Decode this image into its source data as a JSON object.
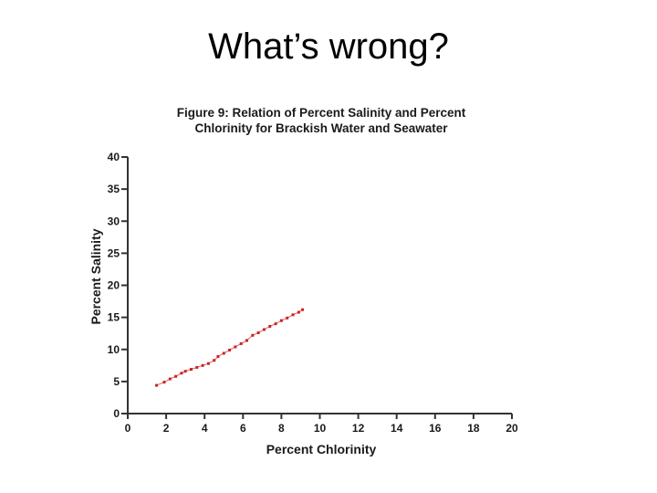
{
  "slide": {
    "title": "What’s wrong?"
  },
  "chart_data": {
    "type": "scatter",
    "title": "Figure 9: Relation of Percent Salinity and Percent",
    "subtitle": "Chlorinity for Brackish Water and Seawater",
    "xlabel": "Percent Chlorinity",
    "ylabel": "Percent Salinity",
    "xlim": [
      0,
      20
    ],
    "ylim": [
      0,
      40
    ],
    "xticks": [
      0,
      2,
      4,
      6,
      8,
      10,
      12,
      14,
      16,
      18,
      20
    ],
    "yticks": [
      0,
      5,
      10,
      15,
      20,
      25,
      30,
      35,
      40
    ],
    "grid": false,
    "color": "#cc2222",
    "series": [
      {
        "points": [
          [
            1.5,
            4.4
          ],
          [
            1.9,
            4.9
          ],
          [
            2.2,
            5.4
          ],
          [
            2.5,
            5.8
          ],
          [
            2.8,
            6.3
          ],
          [
            3.0,
            6.6
          ],
          [
            3.3,
            6.9
          ],
          [
            3.6,
            7.2
          ],
          [
            3.9,
            7.5
          ],
          [
            4.2,
            7.8
          ],
          [
            4.5,
            8.3
          ],
          [
            4.7,
            8.9
          ],
          [
            5.0,
            9.4
          ],
          [
            5.3,
            9.9
          ],
          [
            5.6,
            10.4
          ],
          [
            5.9,
            10.9
          ],
          [
            6.2,
            11.4
          ],
          [
            6.5,
            12.2
          ],
          [
            6.8,
            12.6
          ],
          [
            7.1,
            13.1
          ],
          [
            7.4,
            13.6
          ],
          [
            7.7,
            14.0
          ],
          [
            8.0,
            14.5
          ],
          [
            8.3,
            14.9
          ],
          [
            8.6,
            15.4
          ],
          [
            8.9,
            15.8
          ],
          [
            9.1,
            16.2
          ]
        ]
      }
    ]
  }
}
